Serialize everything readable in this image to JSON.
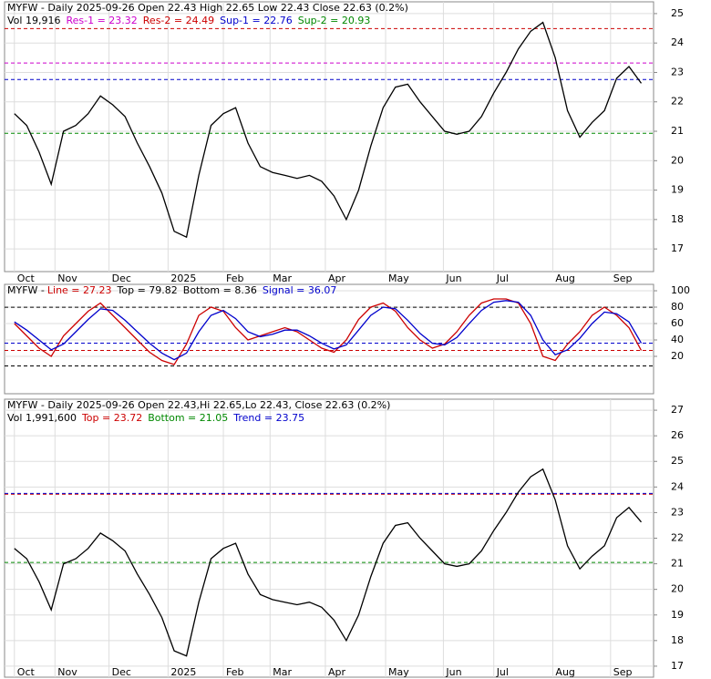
{
  "chart_data": [
    {
      "type": "line",
      "title": "MYFW - Daily 2025-09-26 Open 22.43  High 22.65  Low 22.43  Close 22.63 (0.2%)",
      "legend": [
        {
          "label": "Vol 19,916",
          "color": "#000000"
        },
        {
          "label": "Res-1 = 23.32",
          "value": 23.32,
          "color": "#cc00cc"
        },
        {
          "label": "Res-2 = 24.49",
          "value": 24.49,
          "color": "#cc0000"
        },
        {
          "label": "Sup-1 = 22.76",
          "value": 22.76,
          "color": "#0000cc"
        },
        {
          "label": "Sup-2 = 20.93",
          "value": 20.93,
          "color": "#008800"
        }
      ],
      "x": [
        0,
        1,
        2,
        3,
        4,
        5,
        6,
        7,
        8,
        9,
        10,
        11,
        12,
        13,
        14,
        15,
        16,
        17,
        18,
        19,
        20,
        21,
        22,
        23,
        24,
        25,
        26,
        27,
        28,
        29,
        30,
        31,
        32,
        33,
        34,
        35,
        36,
        37,
        38,
        39,
        40,
        41,
        42,
        43,
        44,
        45,
        46,
        47,
        48,
        49,
        50,
        51
      ],
      "xlim": [
        -0.8,
        52
      ],
      "xticks": [
        {
          "value": 0,
          "label": "Oct"
        },
        {
          "value": 3.3,
          "label": "Nov"
        },
        {
          "value": 7.7,
          "label": "Dec"
        },
        {
          "value": 12.5,
          "label": "2025"
        },
        {
          "value": 17,
          "label": "Feb"
        },
        {
          "value": 20.8,
          "label": "Mar"
        },
        {
          "value": 25.3,
          "label": "Apr"
        },
        {
          "value": 30.2,
          "label": "May"
        },
        {
          "value": 34.9,
          "label": "Jun"
        },
        {
          "value": 39,
          "label": "Jul"
        },
        {
          "value": 43.8,
          "label": "Aug"
        },
        {
          "value": 48.5,
          "label": "Sep"
        }
      ],
      "ylim": [
        16.23,
        25.4
      ],
      "yticks": [
        17,
        18,
        19,
        20,
        21,
        22,
        23,
        24,
        25
      ],
      "series": [
        {
          "name": "Close",
          "color": "#000000",
          "values": [
            21.6,
            21.2,
            20.3,
            19.2,
            21.0,
            21.2,
            21.6,
            22.2,
            21.9,
            21.5,
            20.6,
            19.8,
            18.9,
            17.6,
            17.4,
            19.5,
            21.2,
            21.6,
            21.8,
            20.6,
            19.8,
            19.6,
            19.5,
            19.4,
            19.5,
            19.3,
            18.8,
            18.0,
            19.0,
            20.5,
            21.8,
            22.5,
            22.6,
            22.0,
            21.5,
            21.0,
            20.9,
            21.0,
            21.5,
            22.3,
            23.0,
            23.8,
            24.4,
            24.7,
            23.5,
            21.7,
            20.8,
            21.3,
            21.7,
            22.8,
            23.2,
            22.63
          ]
        }
      ]
    },
    {
      "type": "line",
      "title": "MYFW - ",
      "legend": [
        {
          "label": "Line = 27.23",
          "value": 27.23,
          "color": "#cc0000"
        },
        {
          "label": "Top = 79.82",
          "value": 79.82,
          "color": "#000000"
        },
        {
          "label": "Bottom = 8.36",
          "value": 8.36,
          "color": "#000000"
        },
        {
          "label": "Signal = 36.07",
          "value": 36.07,
          "color": "#0000cc"
        }
      ],
      "x": [
        0,
        1,
        2,
        3,
        4,
        5,
        6,
        7,
        8,
        9,
        10,
        11,
        12,
        13,
        14,
        15,
        16,
        17,
        18,
        19,
        20,
        21,
        22,
        23,
        24,
        25,
        26,
        27,
        28,
        29,
        30,
        31,
        32,
        33,
        34,
        35,
        36,
        37,
        38,
        39,
        40,
        41,
        42,
        43,
        44,
        45,
        46,
        47,
        48,
        49,
        50,
        51
      ],
      "xlim": [
        -0.8,
        52
      ],
      "ylim": [
        -25.6,
        107.8
      ],
      "yticks": [
        20,
        40,
        60,
        80,
        100
      ],
      "series": [
        {
          "name": "Line",
          "color": "#cc0000",
          "values": [
            60,
            45,
            30,
            20,
            45,
            60,
            75,
            85,
            70,
            55,
            40,
            25,
            15,
            10,
            35,
            70,
            80,
            75,
            55,
            40,
            45,
            50,
            55,
            50,
            40,
            30,
            25,
            40,
            65,
            80,
            85,
            75,
            55,
            40,
            30,
            35,
            50,
            70,
            85,
            90,
            90,
            85,
            60,
            20,
            15,
            35,
            50,
            70,
            80,
            70,
            55,
            27.23
          ]
        },
        {
          "name": "Signal",
          "color": "#0000cc",
          "values": [
            62,
            52,
            40,
            28,
            35,
            50,
            65,
            78,
            76,
            64,
            50,
            36,
            24,
            16,
            24,
            50,
            70,
            76,
            66,
            50,
            44,
            47,
            52,
            52,
            45,
            36,
            29,
            34,
            52,
            70,
            80,
            78,
            64,
            48,
            36,
            34,
            43,
            60,
            76,
            86,
            88,
            86,
            70,
            40,
            22,
            28,
            42,
            60,
            74,
            72,
            62,
            36.07
          ]
        }
      ]
    },
    {
      "type": "line",
      "title": "MYFW - Daily 2025-09-26 Open 22.43,Hi 22.65,Lo 22.43, Close 22.63 (0.2%)",
      "legend": [
        {
          "label": "Vol 1,991,600",
          "color": "#000000"
        },
        {
          "label": "Top = 23.72",
          "value": 23.72,
          "color": "#cc0000"
        },
        {
          "label": "Bottom = 21.05",
          "value": 21.05,
          "color": "#008800"
        },
        {
          "label": "Trend = 23.75",
          "value": 23.75,
          "color": "#0000cc"
        }
      ],
      "x": [
        0,
        1,
        2,
        3,
        4,
        5,
        6,
        7,
        8,
        9,
        10,
        11,
        12,
        13,
        14,
        15,
        16,
        17,
        18,
        19,
        20,
        21,
        22,
        23,
        24,
        25,
        26,
        27,
        28,
        29,
        30,
        31,
        32,
        33,
        34,
        35,
        36,
        37,
        38,
        39,
        40,
        41,
        42,
        43,
        44,
        45,
        46,
        47,
        48,
        49,
        50,
        51
      ],
      "xlim": [
        -0.8,
        52
      ],
      "xticks": [
        {
          "value": 0,
          "label": "Oct"
        },
        {
          "value": 3.3,
          "label": "Nov"
        },
        {
          "value": 7.7,
          "label": "Dec"
        },
        {
          "value": 12.5,
          "label": "2025"
        },
        {
          "value": 17,
          "label": "Feb"
        },
        {
          "value": 20.8,
          "label": "Mar"
        },
        {
          "value": 25.3,
          "label": "Apr"
        },
        {
          "value": 30.2,
          "label": "May"
        },
        {
          "value": 34.9,
          "label": "Jun"
        },
        {
          "value": 39,
          "label": "Jul"
        },
        {
          "value": 43.8,
          "label": "Aug"
        },
        {
          "value": 48.5,
          "label": "Sep"
        }
      ],
      "ylim": [
        16.57,
        27.43
      ],
      "yticks": [
        17,
        18,
        19,
        20,
        21,
        22,
        23,
        24,
        25,
        26,
        27
      ],
      "series": [
        {
          "name": "Close",
          "color": "#000000",
          "values": [
            21.6,
            21.2,
            20.3,
            19.2,
            21.0,
            21.2,
            21.6,
            22.2,
            21.9,
            21.5,
            20.6,
            19.8,
            18.9,
            17.6,
            17.4,
            19.5,
            21.2,
            21.6,
            21.8,
            20.6,
            19.8,
            19.6,
            19.5,
            19.4,
            19.5,
            19.3,
            18.8,
            18.0,
            19.0,
            20.5,
            21.8,
            22.5,
            22.6,
            22.0,
            21.5,
            21.0,
            20.9,
            21.0,
            21.5,
            22.3,
            23.0,
            23.8,
            24.4,
            24.7,
            23.5,
            21.7,
            20.8,
            21.3,
            21.7,
            22.8,
            23.2,
            22.63
          ]
        }
      ]
    }
  ]
}
